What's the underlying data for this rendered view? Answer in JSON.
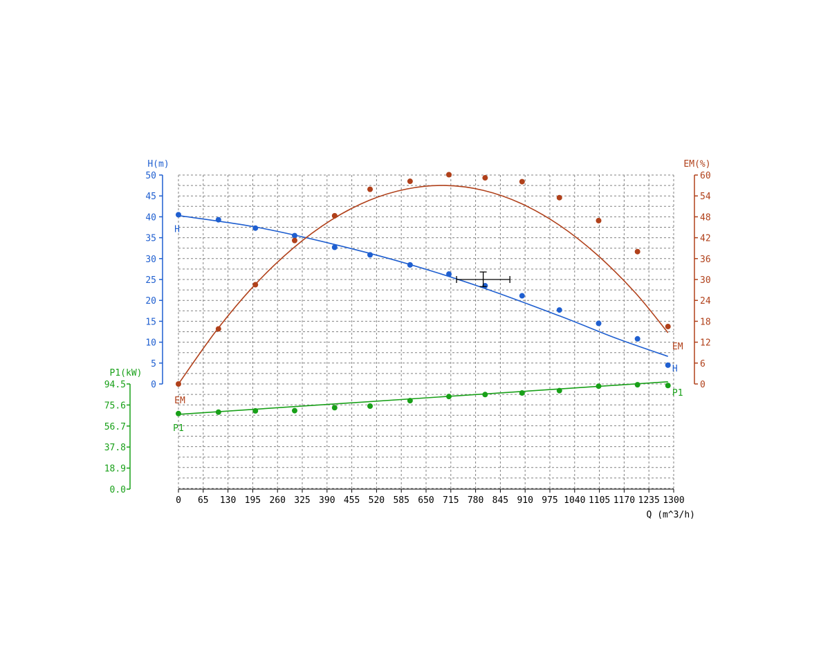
{
  "colors": {
    "H": "#1f5fd0",
    "EM": "#b0401a",
    "P1": "#18a018",
    "grid": "#808080",
    "axis": "#000000",
    "marker": "#000000"
  },
  "chart_data": {
    "type": "scatter",
    "grid": true,
    "x_axis": {
      "label": "Q (m^3/h)",
      "ticks": [
        "0",
        "65",
        "130",
        "195",
        "260",
        "325",
        "390",
        "455",
        "520",
        "585",
        "650",
        "715",
        "780",
        "845",
        "910",
        "975",
        "1040",
        "1105",
        "1170",
        "1235",
        "1300"
      ],
      "range": [
        0,
        1300
      ]
    },
    "y_axes": {
      "H": {
        "label": "H(m)",
        "range": [
          0,
          50
        ],
        "ticks": [
          "0",
          "5",
          "10",
          "15",
          "20",
          "25",
          "30",
          "35",
          "40",
          "45",
          "50"
        ]
      },
      "EM": {
        "label": "EM(%)",
        "range": [
          0,
          60
        ],
        "ticks": [
          "0",
          "6",
          "12",
          "18",
          "24",
          "30",
          "36",
          "42",
          "48",
          "54",
          "60"
        ]
      },
      "P1": {
        "label": "P1(kW)",
        "range": [
          0,
          94.5
        ],
        "ticks": [
          "0.0",
          "18.9",
          "37.8",
          "56.7",
          "75.6",
          "94.5"
        ]
      }
    },
    "series": [
      {
        "name": "H",
        "axis": "H",
        "points": [
          [
            0,
            40.5
          ],
          [
            105,
            39.3
          ],
          [
            202,
            37.3
          ],
          [
            305,
            35.5
          ],
          [
            410,
            32.7
          ],
          [
            503,
            30.9
          ],
          [
            608,
            28.5
          ],
          [
            710,
            26.3
          ],
          [
            805,
            23.5
          ],
          [
            902,
            21.1
          ],
          [
            1000,
            17.7
          ],
          [
            1103,
            14.5
          ],
          [
            1205,
            10.8
          ],
          [
            1285,
            4.5
          ]
        ],
        "fit": [
          [
            0,
            40.3
          ],
          [
            200,
            37.6
          ],
          [
            400,
            33.6
          ],
          [
            600,
            28.8
          ],
          [
            800,
            23.0
          ],
          [
            1000,
            16.3
          ],
          [
            1150,
            10.9
          ],
          [
            1285,
            6.6
          ]
        ]
      },
      {
        "name": "EM",
        "axis": "EM",
        "points": [
          [
            0,
            0
          ],
          [
            105,
            15.8
          ],
          [
            202,
            28.5
          ],
          [
            305,
            41.2
          ],
          [
            410,
            48.3
          ],
          [
            503,
            55.9
          ],
          [
            608,
            58.2
          ],
          [
            710,
            60.1
          ],
          [
            805,
            59.2
          ],
          [
            902,
            58.1
          ],
          [
            1000,
            53.5
          ],
          [
            1103,
            46.9
          ],
          [
            1205,
            38.0
          ],
          [
            1285,
            16.5
          ]
        ],
        "fit": [
          [
            0,
            0
          ],
          [
            100,
            15.4
          ],
          [
            200,
            28.4
          ],
          [
            300,
            38.9
          ],
          [
            400,
            47.0
          ],
          [
            500,
            52.7
          ],
          [
            600,
            56.0
          ],
          [
            700,
            57.0
          ],
          [
            800,
            55.6
          ],
          [
            900,
            51.8
          ],
          [
            1000,
            45.6
          ],
          [
            1100,
            37.0
          ],
          [
            1200,
            26.1
          ],
          [
            1285,
            14.7
          ]
        ]
      },
      {
        "name": "P1",
        "axis": "P1",
        "points": [
          [
            0,
            67.9
          ],
          [
            105,
            69.2
          ],
          [
            202,
            70.3
          ],
          [
            305,
            70.5
          ],
          [
            410,
            73.2
          ],
          [
            503,
            74.6
          ],
          [
            608,
            79.5
          ],
          [
            710,
            83.2
          ],
          [
            805,
            85.0
          ],
          [
            902,
            86.4
          ],
          [
            1000,
            88.5
          ],
          [
            1103,
            92.5
          ],
          [
            1205,
            93.8
          ],
          [
            1285,
            93.1
          ]
        ],
        "fit": [
          [
            0,
            67.2
          ],
          [
            1285,
            96.5
          ]
        ]
      }
    ],
    "operating_point": {
      "q": 800,
      "h": 25,
      "q_range": [
        730,
        870
      ],
      "h_range": [
        23.3,
        26.8
      ]
    }
  }
}
